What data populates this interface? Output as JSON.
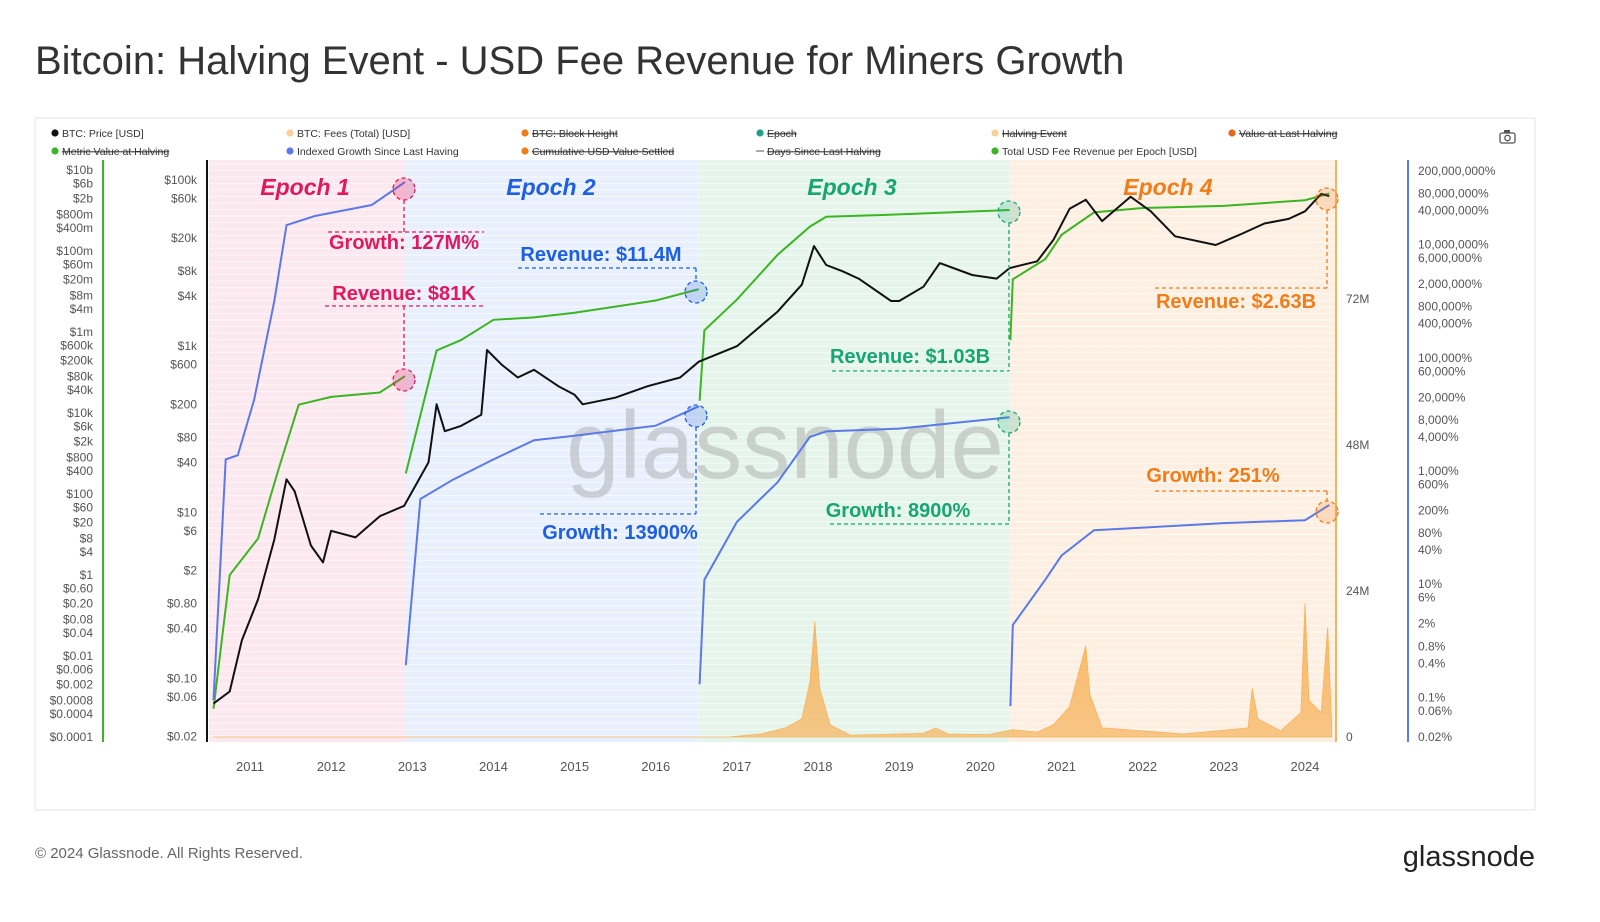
{
  "title": "Bitcoin: Halving Event - USD Fee Revenue for Miners Growth",
  "footer": {
    "copyright": "© 2024 Glassnode. All Rights Reserved.",
    "logo": "glassnode"
  },
  "watermark": "glassnode",
  "toolbar": {
    "camera_icon": "camera-icon"
  },
  "colors": {
    "price": "#111111",
    "fees": "#f7b35b",
    "revenue": "#3cb522",
    "growth": "#5b79e8",
    "epoch1": "#e0195e",
    "epoch2": "#1e5fe0",
    "epoch3": "#17a673",
    "epoch4": "#f07d1a"
  },
  "legend": [
    {
      "label": "BTC: Price [USD]",
      "color": "#111111",
      "active": true
    },
    {
      "label": "BTC: Fees (Total) [USD]",
      "color": "#f9cf9a",
      "active": true
    },
    {
      "label": "BTC: Block Height",
      "color": "#f07d1a",
      "active": false
    },
    {
      "label": "Epoch",
      "color": "#1f9e8a",
      "active": false
    },
    {
      "label": "Halving Event",
      "color": "#f9cf9a",
      "active": false
    },
    {
      "label": "Value at Last Halving",
      "color": "#e8661a",
      "active": false
    },
    {
      "label": "Metric Value at Halving",
      "color": "#3cb522",
      "active": false
    },
    {
      "label": "Indexed Growth Since Last Having",
      "color": "#5b79e8",
      "active": true
    },
    {
      "label": "Cumulative USD Value Settled",
      "color": "#f07d1a",
      "active": false
    },
    {
      "label": "Days Since Last Halving",
      "color": "#555555",
      "active": false
    },
    {
      "label": "Total USD Fee Revenue per Epoch [USD]",
      "color": "#3cb522",
      "active": true
    }
  ],
  "annotations": {
    "epochs": [
      "Epoch 1",
      "Epoch 2",
      "Epoch 3",
      "Epoch 4"
    ],
    "e1_growth": "Growth: 127M%",
    "e1_revenue": "Revenue: $81K",
    "e2_revenue": "Revenue: $11.4M",
    "e2_growth": "Growth: 13900%",
    "e3_revenue": "Revenue: $1.03B",
    "e3_growth": "Growth: 8900%",
    "e4_revenue": "Revenue: $2.63B",
    "e4_growth": "Growth: 251%"
  },
  "chart_data": {
    "type": "line",
    "title": "Bitcoin: Halving Event - USD Fee Revenue for Miners Growth",
    "x_ticks": [
      "2011",
      "2012",
      "2013",
      "2014",
      "2015",
      "2016",
      "2017",
      "2018",
      "2019",
      "2020",
      "2021",
      "2022",
      "2023",
      "2024"
    ],
    "xlim": [
      2010.55,
      2024.35
    ],
    "halvings": [
      2012.91,
      2016.53,
      2020.36,
      2024.3
    ],
    "grid": true,
    "legend_position": "top",
    "axes": {
      "revenue_left": {
        "scale": "log",
        "ticks": [
          [
            "$10b",
            10000000000.0
          ],
          [
            "$6b",
            6000000000.0
          ],
          [
            "$2b",
            2000000000.0
          ],
          [
            "$800m",
            800000000.0
          ],
          [
            "$400m",
            400000000.0
          ],
          [
            "$100m",
            100000000.0
          ],
          [
            "$60m",
            60000000.0
          ],
          [
            "$20m",
            20000000.0
          ],
          [
            "$8m",
            8000000.0
          ],
          [
            "$4m",
            4000000.0
          ],
          [
            "$1m",
            1000000.0
          ],
          [
            "$600k",
            600000.0
          ],
          [
            "$200k",
            200000.0
          ],
          [
            "$80k",
            80000.0
          ],
          [
            "$40k",
            40000.0
          ],
          [
            "$10k",
            10000.0
          ],
          [
            "$6k",
            6000.0
          ],
          [
            "$2k",
            2000.0
          ],
          [
            "$800",
            800
          ],
          [
            "$400",
            400
          ],
          [
            "$100",
            100
          ],
          [
            "$60",
            60
          ],
          [
            "$20",
            20
          ],
          [
            "$8",
            8
          ],
          [
            "$4",
            4
          ],
          [
            "$1",
            1
          ],
          [
            "$0.60",
            0.6
          ],
          [
            "$0.20",
            0.2
          ],
          [
            "$0.08",
            0.08
          ],
          [
            "$0.04",
            0.04
          ],
          [
            "$0.01",
            0.01
          ],
          [
            "$0.006",
            0.006
          ],
          [
            "$0.002",
            0.002
          ],
          [
            "$0.0008",
            0.0008
          ],
          [
            "$0.0004",
            0.0004
          ],
          [
            "$0.0001",
            0.0001
          ]
        ]
      },
      "price": {
        "scale": "log",
        "ticks": [
          [
            "$100k",
            100000.0
          ],
          [
            "$60k",
            60000.0
          ],
          [
            "$20k",
            20000.0
          ],
          [
            "$8k",
            8000.0
          ],
          [
            "$4k",
            4000.0
          ],
          [
            "$1k",
            1000.0
          ],
          [
            "$600",
            600
          ],
          [
            "$200",
            200
          ],
          [
            "$80",
            80
          ],
          [
            "$40",
            40
          ],
          [
            "$10",
            10
          ],
          [
            "$6",
            6
          ],
          [
            "$2",
            2
          ],
          [
            "$0.80",
            0.8
          ],
          [
            "$0.40",
            0.4
          ],
          [
            "$0.10",
            0.1
          ],
          [
            "$0.06",
            0.06
          ],
          [
            "$0.02",
            0.02
          ]
        ]
      },
      "fees_right": {
        "scale": "linear",
        "ticks": [
          [
            "72M",
            72
          ],
          [
            "48M",
            48
          ],
          [
            "24M",
            24
          ],
          [
            "0",
            0
          ]
        ]
      },
      "growth_right": {
        "scale": "log",
        "ticks": [
          [
            "200,000,000%",
            200000000.0
          ],
          [
            "80,000,000%",
            80000000.0
          ],
          [
            "40,000,000%",
            40000000.0
          ],
          [
            "10,000,000%",
            10000000.0
          ],
          [
            "6,000,000%",
            6000000.0
          ],
          [
            "2,000,000%",
            2000000.0
          ],
          [
            "800,000%",
            800000.0
          ],
          [
            "400,000%",
            400000.0
          ],
          [
            "100,000%",
            100000.0
          ],
          [
            "60,000%",
            60000.0
          ],
          [
            "20,000%",
            20000.0
          ],
          [
            "8,000%",
            8000.0
          ],
          [
            "4,000%",
            4000.0
          ],
          [
            "1,000%",
            1000.0
          ],
          [
            "600%",
            600
          ],
          [
            "200%",
            200
          ],
          [
            "80%",
            80
          ],
          [
            "40%",
            40
          ],
          [
            "10%",
            10
          ],
          [
            "6%",
            6
          ],
          [
            "2%",
            2
          ],
          [
            "0.8%",
            0.8
          ],
          [
            "0.4%",
            0.4
          ],
          [
            "0.1%",
            0.1
          ],
          [
            "0.06%",
            0.06
          ],
          [
            "0.02%",
            0.02
          ]
        ]
      }
    },
    "series": [
      {
        "name": "BTC: Price [USD]",
        "axis": "price",
        "points": [
          [
            2010.55,
            0.05
          ],
          [
            2010.75,
            0.07
          ],
          [
            2010.9,
            0.29
          ],
          [
            2011.1,
            0.9
          ],
          [
            2011.3,
            4.7
          ],
          [
            2011.45,
            25
          ],
          [
            2011.55,
            18
          ],
          [
            2011.75,
            4
          ],
          [
            2011.9,
            2.5
          ],
          [
            2012.0,
            6
          ],
          [
            2012.3,
            5
          ],
          [
            2012.6,
            9
          ],
          [
            2012.9,
            12
          ],
          [
            2013.2,
            40
          ],
          [
            2013.3,
            200
          ],
          [
            2013.4,
            95
          ],
          [
            2013.6,
            110
          ],
          [
            2013.85,
            150
          ],
          [
            2013.92,
            900
          ],
          [
            2014.1,
            600
          ],
          [
            2014.3,
            420
          ],
          [
            2014.5,
            520
          ],
          [
            2014.8,
            330
          ],
          [
            2015.0,
            260
          ],
          [
            2015.1,
            200
          ],
          [
            2015.5,
            240
          ],
          [
            2015.9,
            330
          ],
          [
            2016.3,
            420
          ],
          [
            2016.53,
            650
          ],
          [
            2017.0,
            1000
          ],
          [
            2017.5,
            2600
          ],
          [
            2017.8,
            5500
          ],
          [
            2017.95,
            16000
          ],
          [
            2018.1,
            9500
          ],
          [
            2018.3,
            8000
          ],
          [
            2018.5,
            6500
          ],
          [
            2018.9,
            3500
          ],
          [
            2019.0,
            3500
          ],
          [
            2019.3,
            5200
          ],
          [
            2019.5,
            10000
          ],
          [
            2019.9,
            7200
          ],
          [
            2020.2,
            6500
          ],
          [
            2020.36,
            8700
          ],
          [
            2020.7,
            10500
          ],
          [
            2020.9,
            19000
          ],
          [
            2021.1,
            45000
          ],
          [
            2021.3,
            58000
          ],
          [
            2021.5,
            32000
          ],
          [
            2021.85,
            63000
          ],
          [
            2022.1,
            42000
          ],
          [
            2022.4,
            21000
          ],
          [
            2022.9,
            16500
          ],
          [
            2023.2,
            22000
          ],
          [
            2023.5,
            30000
          ],
          [
            2023.8,
            34000
          ],
          [
            2024.0,
            42000
          ],
          [
            2024.2,
            68000
          ],
          [
            2024.3,
            64000
          ]
        ]
      },
      {
        "name": "Total USD Fee Revenue per Epoch [USD]",
        "axis": "revenue_left",
        "epochs": [
          [
            [
              2010.55,
              0.0005
            ],
            [
              2010.75,
              1
            ],
            [
              2011.1,
              8
            ],
            [
              2011.35,
              400
            ],
            [
              2011.6,
              16000
            ],
            [
              2012.0,
              25000
            ],
            [
              2012.6,
              32000
            ],
            [
              2012.91,
              81000
            ]
          ],
          [
            [
              2012.92,
              320
            ],
            [
              2013.3,
              350000
            ],
            [
              2013.6,
              630000
            ],
            [
              2014.0,
              2000000
            ],
            [
              2014.5,
              2300000
            ],
            [
              2015.0,
              3000000
            ],
            [
              2016.0,
              6000000
            ],
            [
              2016.53,
              11400000
            ]
          ],
          [
            [
              2016.54,
              20000
            ],
            [
              2016.6,
              1100000
            ],
            [
              2017.0,
              6300000
            ],
            [
              2017.5,
              80000000
            ],
            [
              2017.9,
              400000000
            ],
            [
              2018.1,
              700000000
            ],
            [
              2019.0,
              800000000
            ],
            [
              2020.36,
              1030000000
            ]
          ],
          [
            [
              2020.37,
              630000
            ],
            [
              2020.4,
              20000000
            ],
            [
              2020.8,
              63000000
            ],
            [
              2021.0,
              250000000
            ],
            [
              2021.4,
              900000000
            ],
            [
              2022.0,
              1150000000
            ],
            [
              2023.0,
              1300000000
            ],
            [
              2024.0,
              1800000000
            ],
            [
              2024.3,
              2630000000
            ]
          ]
        ]
      },
      {
        "name": "Indexed Growth Since Last Having",
        "axis": "growth_right",
        "epochs": [
          [
            [
              2010.55,
              0.09
            ],
            [
              2010.7,
              1600
            ],
            [
              2010.85,
              1900
            ],
            [
              2011.05,
              18000
            ],
            [
              2011.3,
              1000000
            ],
            [
              2011.45,
              22000000
            ],
            [
              2011.8,
              32000000
            ],
            [
              2012.5,
              50000000
            ],
            [
              2012.91,
              127000000
            ]
          ],
          [
            [
              2012.92,
              0.37
            ],
            [
              2013.1,
              320
            ],
            [
              2013.5,
              700
            ],
            [
              2014.0,
              1600
            ],
            [
              2014.5,
              3500
            ],
            [
              2015.0,
              4200
            ],
            [
              2016.0,
              6300
            ],
            [
              2016.53,
              13900
            ]
          ],
          [
            [
              2016.54,
              0.17
            ],
            [
              2016.6,
              12
            ],
            [
              2017.0,
              126
            ],
            [
              2017.5,
              630
            ],
            [
              2017.9,
              4000
            ],
            [
              2018.1,
              5000
            ],
            [
              2019.0,
              5600
            ],
            [
              2020.36,
              8900
            ]
          ],
          [
            [
              2020.37,
              0.07
            ],
            [
              2020.4,
              1.9
            ],
            [
              2020.8,
              12
            ],
            [
              2021.0,
              32
            ],
            [
              2021.4,
              90
            ],
            [
              2022.0,
              100
            ],
            [
              2023.0,
              120
            ],
            [
              2024.0,
              135
            ],
            [
              2024.3,
              251
            ]
          ]
        ]
      },
      {
        "name": "BTC: Fees (Total) [USD]",
        "axis": "fees_right",
        "type": "area",
        "points": [
          [
            2010.55,
            0
          ],
          [
            2016.9,
            0
          ],
          [
            2017.3,
            0.5
          ],
          [
            2017.6,
            1.5
          ],
          [
            2017.8,
            3
          ],
          [
            2017.9,
            9
          ],
          [
            2017.96,
            19
          ],
          [
            2018.02,
            8
          ],
          [
            2018.15,
            2
          ],
          [
            2018.4,
            0.3
          ],
          [
            2019.3,
            0.6
          ],
          [
            2019.45,
            1.5
          ],
          [
            2019.6,
            0.5
          ],
          [
            2020.1,
            0.4
          ],
          [
            2020.4,
            1.2
          ],
          [
            2020.7,
            0.8
          ],
          [
            2020.9,
            2
          ],
          [
            2021.1,
            5
          ],
          [
            2021.3,
            15
          ],
          [
            2021.35,
            7
          ],
          [
            2021.5,
            1.5
          ],
          [
            2022.0,
            1
          ],
          [
            2022.5,
            0.5
          ],
          [
            2023.3,
            1.5
          ],
          [
            2023.35,
            8
          ],
          [
            2023.42,
            3
          ],
          [
            2023.7,
            1
          ],
          [
            2023.95,
            4
          ],
          [
            2024.0,
            22
          ],
          [
            2024.05,
            6
          ],
          [
            2024.2,
            4
          ],
          [
            2024.28,
            18
          ],
          [
            2024.33,
            2
          ]
        ]
      }
    ]
  }
}
